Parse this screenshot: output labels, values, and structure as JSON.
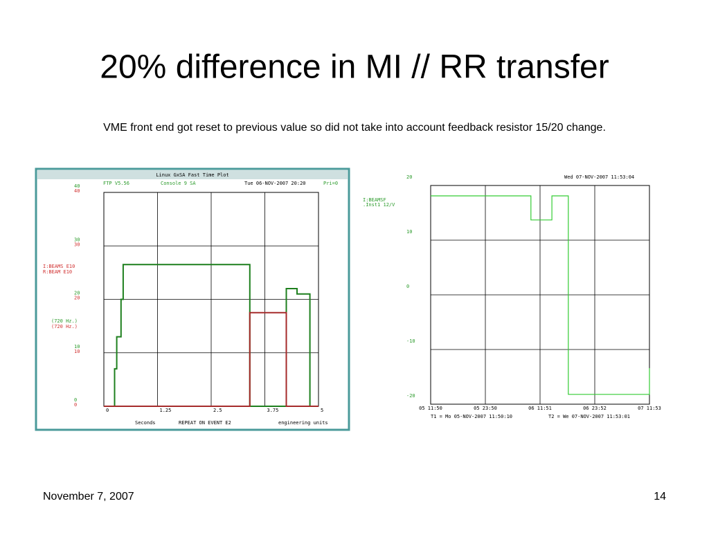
{
  "title": "20% difference in MI // RR transfer",
  "subtitle": "VME front end got reset to previous value so did not take into account feedback resistor 15/20 change.",
  "footer": {
    "date": "November 7, 2007",
    "page": "14"
  },
  "chart_data": [
    {
      "type": "line",
      "title": "Linux GxSA  Fast Time Plot",
      "header": [
        "FTP V5.56",
        "Console   9    SA",
        "Tue 06-NOV-2007 20:20",
        "Pri=0"
      ],
      "legend_labels": [
        "I:BEAMS    E10",
        "R:BEAM     E10",
        "(720  Hz.)",
        "(720  Hz.)"
      ],
      "xlabel": "Seconds",
      "annotation": "REPEAT ON EVENT E2",
      "ylabel": "engineering units",
      "xlim": [
        0,
        5
      ],
      "xticks": [
        0,
        1.25,
        2.5,
        3.75,
        5
      ],
      "ylim": [
        0,
        40
      ],
      "yticks": [
        0,
        10,
        20,
        30,
        40
      ],
      "grid": true,
      "series": [
        {
          "name": "I:BEAMS",
          "color": "#1d7f1d",
          "x": [
            0,
            0.25,
            0.25,
            0.3,
            0.3,
            0.4,
            0.4,
            0.45,
            0.45,
            3.4,
            3.4,
            4.25,
            4.25,
            4.5,
            4.5,
            4.8,
            4.8,
            5
          ],
          "values": [
            0,
            0,
            7,
            7,
            13,
            13,
            20,
            20,
            26.5,
            26.5,
            0,
            0,
            22,
            22,
            21,
            21,
            0,
            0
          ]
        },
        {
          "name": "R:BEAM",
          "color": "#a52a2a",
          "x": [
            0,
            3.4,
            3.4,
            4.25,
            4.25,
            5
          ],
          "values": [
            0,
            0,
            17.5,
            17.5,
            0,
            0
          ]
        }
      ]
    },
    {
      "type": "line",
      "header": [
        "Wed 07-NOV-2007 11:53:04"
      ],
      "legend_labels": [
        "I:BEAMSF",
        ".Inst1  12/V"
      ],
      "footer_labels": [
        "T1 = Mo 05-NOV-2007 11:50:10",
        "T2 = We 07-NOV-2007 11:53:01"
      ],
      "xlim": [
        0,
        48
      ],
      "xticks": [
        {
          "value": 0,
          "label": "05 11:50"
        },
        {
          "value": 12,
          "label": "05 23:50"
        },
        {
          "value": 24,
          "label": "06 11:51"
        },
        {
          "value": 36,
          "label": "06 23:52"
        },
        {
          "value": 48,
          "label": "07 11:53"
        }
      ],
      "ylim": [
        -20,
        20
      ],
      "yticks": [
        -20,
        -10,
        0,
        10,
        20
      ],
      "grid": true,
      "series": [
        {
          "name": "I:BEAMSF",
          "color": "#33cc33",
          "x": [
            0,
            22,
            22,
            26.6,
            26.6,
            30.2,
            30.2,
            48,
            48
          ],
          "values": [
            18.1,
            18.1,
            13.7,
            13.7,
            18.1,
            18.1,
            -18.2,
            -18.2,
            -13.4
          ]
        }
      ]
    }
  ]
}
